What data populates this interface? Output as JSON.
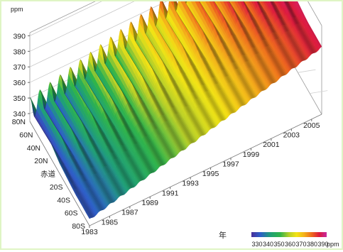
{
  "chart_data": {
    "type": "area",
    "subtype": "3d-surface",
    "title": "",
    "zlabel": "ppm",
    "xlabel": "年",
    "ylabel": "",
    "x_ticks": [
      "1983",
      "1985",
      "1987",
      "1989",
      "1991",
      "1993",
      "1995",
      "1997",
      "1999",
      "2001",
      "2003",
      "2005"
    ],
    "y_ticks": [
      "80N",
      "60N",
      "40N",
      "20N",
      "赤道",
      "20S",
      "40S",
      "60S",
      "80S"
    ],
    "z_ticks": [
      "340",
      "350",
      "360",
      "370",
      "380",
      "390"
    ],
    "xlim": [
      1983,
      2006
    ],
    "zlim": [
      335,
      392
    ],
    "grid": true,
    "colorbar": {
      "labels": [
        "330",
        "340",
        "350",
        "360",
        "370",
        "380",
        "390"
      ],
      "unit": "ppm",
      "colors": [
        "#4a2f9a",
        "#2c5fc9",
        "#1f9f77",
        "#2fb44a",
        "#b7cf28",
        "#f2e414",
        "#f4b219",
        "#ee6a1c",
        "#dd1a3c",
        "#d62278",
        "#c62aa0"
      ]
    },
    "series": [
      {
        "latitude": "80N",
        "start_ppm": 343,
        "end_ppm": 383,
        "seasonal_amplitude_ppm": 15
      },
      {
        "latitude": "40N",
        "start_ppm": 342,
        "end_ppm": 382,
        "seasonal_amplitude_ppm": 10
      },
      {
        "latitude": "赤道",
        "start_ppm": 340,
        "end_ppm": 380,
        "seasonal_amplitude_ppm": 3
      },
      {
        "latitude": "40S",
        "start_ppm": 339,
        "end_ppm": 378,
        "seasonal_amplitude_ppm": 1
      },
      {
        "latitude": "80S",
        "start_ppm": 339,
        "end_ppm": 378,
        "seasonal_amplitude_ppm": 1
      }
    ]
  }
}
